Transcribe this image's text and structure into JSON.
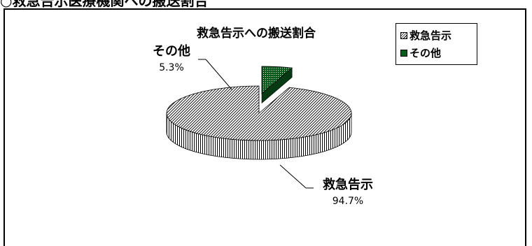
{
  "page": {
    "heading": "○救急告示医療機関への搬送割合"
  },
  "chart_data": {
    "type": "pie",
    "title": "救急告示への搬送割合",
    "three_d": true,
    "categories": [
      "救急告示",
      "その他"
    ],
    "values": [
      94.7,
      5.3
    ],
    "value_labels": [
      "94.7%",
      "5.3%"
    ],
    "colors": {
      "救急告示": "#000000",
      "その他": "#0a5a1c"
    },
    "fill_patterns": {
      "救急告示": "diagonal-hatch",
      "その他": "solid-dark-green-dotted"
    },
    "legend": {
      "placement": "top-right",
      "entries": [
        "救急告示",
        "その他"
      ]
    }
  }
}
